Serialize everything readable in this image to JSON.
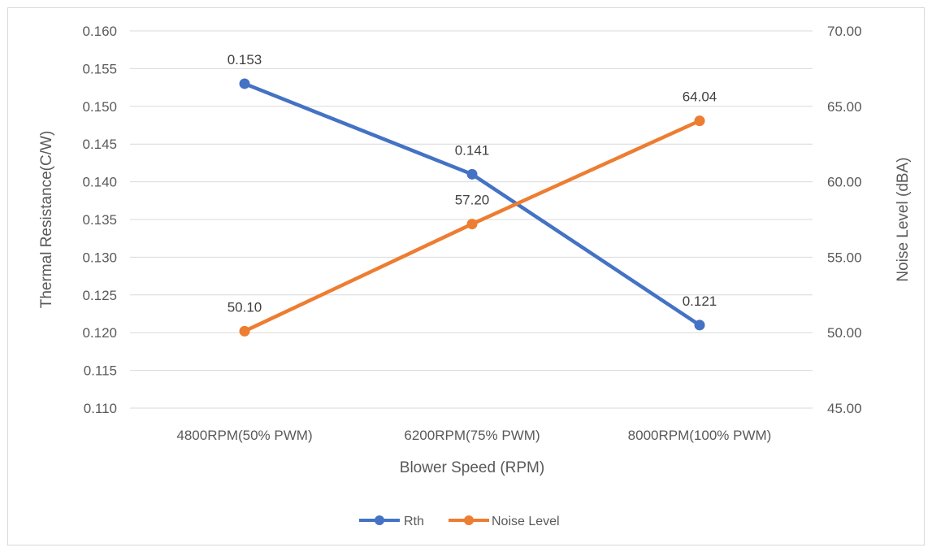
{
  "chart_data": {
    "type": "line",
    "categories": [
      "4800RPM(50% PWM)",
      "6200RPM(75% PWM)",
      "8000RPM(100% PWM)"
    ],
    "xlabel": "Blower Speed (RPM)",
    "ylabel": "Thermal Resistance(C/W)",
    "y2label": "Noise Level (dBA)",
    "ylim": [
      0.11,
      0.16
    ],
    "y2lim": [
      45.0,
      70.0
    ],
    "yticks": [
      "0.110",
      "0.115",
      "0.120",
      "0.125",
      "0.130",
      "0.135",
      "0.140",
      "0.145",
      "0.150",
      "0.155",
      "0.160"
    ],
    "y2ticks": [
      "45.00",
      "50.00",
      "55.00",
      "60.00",
      "65.00",
      "70.00"
    ],
    "grid": true,
    "legend_position": "bottom",
    "series": [
      {
        "name": "Rth",
        "axis": "left",
        "color": "#4472c4",
        "values": [
          0.153,
          0.141,
          0.121
        ],
        "labels": [
          "0.153",
          "0.141",
          "0.121"
        ]
      },
      {
        "name": "Noise Level",
        "axis": "right",
        "color": "#ed7d31",
        "values": [
          50.1,
          57.2,
          64.04
        ],
        "labels": [
          "50.10",
          "57.20",
          "64.04"
        ]
      }
    ]
  }
}
